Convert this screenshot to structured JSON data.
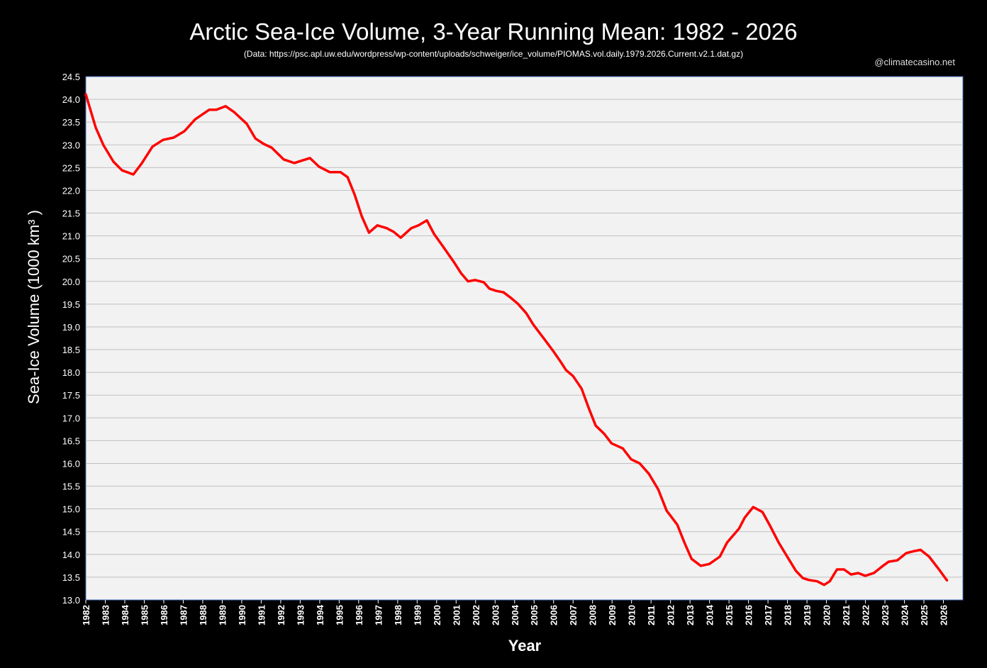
{
  "chart_data": {
    "type": "line",
    "title": "Arctic Sea-Ice Volume, 3-Year Running Mean: 1982 - 2026",
    "subtitle": "(Data: https://psc.apl.uw.edu/wordpress/wp-content/uploads/schweiger/ice_volume/PIOMAS.vol.daily.1979.2026.Current.v2.1.dat.gz)",
    "credit": "@climatecasino.net",
    "xlabel": "Year",
    "ylabel": "Sea-Ice Volume (1000 km³ )",
    "xlim": [
      1982,
      2027
    ],
    "ylim": [
      13.0,
      24.5
    ],
    "grid": true,
    "line_color": "#ff0000",
    "x_ticks": [
      "1982",
      "1983",
      "1984",
      "1985",
      "1986",
      "1987",
      "1988",
      "1989",
      "1990",
      "1991",
      "1992",
      "1993",
      "1994",
      "1995",
      "1996",
      "1997",
      "1998",
      "1999",
      "2000",
      "2001",
      "2002",
      "2003",
      "2004",
      "2005",
      "2006",
      "2007",
      "2008",
      "2009",
      "2010",
      "2011",
      "2012",
      "2013",
      "2014",
      "2015",
      "2016",
      "2017",
      "2018",
      "2019",
      "2020",
      "2021",
      "2022",
      "2023",
      "2024",
      "2025",
      "2026"
    ],
    "y_ticks": [
      "13.0",
      "13.5",
      "14.0",
      "14.5",
      "15.0",
      "15.5",
      "16.0",
      "16.5",
      "17.0",
      "17.5",
      "18.0",
      "18.5",
      "19.0",
      "19.5",
      "20.0",
      "20.5",
      "21.0",
      "21.5",
      "22.0",
      "22.5",
      "23.0",
      "23.5",
      "24.0",
      "24.5"
    ],
    "series": [
      {
        "name": "3-Year Running Mean",
        "x": [
          1982.0,
          1982.51,
          1982.91,
          1983.42,
          1983.86,
          1984.44,
          1984.88,
          1985.42,
          1985.97,
          1986.51,
          1987.06,
          1987.61,
          1988.33,
          1988.7,
          1989.17,
          1989.61,
          1990.26,
          1990.7,
          1991.13,
          1991.53,
          1992.15,
          1992.7,
          1993.06,
          1993.5,
          1993.97,
          1994.52,
          1995.07,
          1995.43,
          1995.8,
          1996.16,
          1996.53,
          1996.96,
          1997.43,
          1997.79,
          1998.16,
          1998.7,
          1999.07,
          1999.5,
          1999.87,
          2000.34,
          2000.89,
          2001.25,
          2001.61,
          2001.98,
          2002.42,
          2002.71,
          2003.07,
          2003.43,
          2003.8,
          2004.16,
          2004.6,
          2004.96,
          2005.44,
          2005.98,
          2006.35,
          2006.64,
          2007.0,
          2007.44,
          2007.8,
          2008.16,
          2008.6,
          2008.97,
          2009.55,
          2009.98,
          2010.42,
          2010.89,
          2011.37,
          2011.8,
          2012.35,
          2012.71,
          2013.08,
          2013.55,
          2013.99,
          2014.53,
          2014.9,
          2015.52,
          2015.81,
          2016.24,
          2016.72,
          2017.08,
          2017.55,
          2018.06,
          2018.43,
          2018.79,
          2019.08,
          2019.52,
          2019.88,
          2020.17,
          2020.54,
          2020.9,
          2021.26,
          2021.63,
          2021.99,
          2022.43,
          2022.9,
          2023.19,
          2023.63,
          2024.1,
          2024.47,
          2024.83,
          2025.27,
          2025.7,
          2026.18
        ],
        "y": [
          24.11,
          23.38,
          22.99,
          22.63,
          22.44,
          22.35,
          22.6,
          22.96,
          23.11,
          23.16,
          23.3,
          23.56,
          23.77,
          23.77,
          23.85,
          23.72,
          23.46,
          23.14,
          23.02,
          22.94,
          22.68,
          22.6,
          22.65,
          22.71,
          22.52,
          22.4,
          22.4,
          22.29,
          21.9,
          21.43,
          21.07,
          21.23,
          21.17,
          21.09,
          20.96,
          21.17,
          21.23,
          21.34,
          21.04,
          20.76,
          20.42,
          20.18,
          20.0,
          20.03,
          19.98,
          19.84,
          19.79,
          19.76,
          19.64,
          19.51,
          19.3,
          19.05,
          18.78,
          18.47,
          18.24,
          18.05,
          17.92,
          17.64,
          17.22,
          16.83,
          16.65,
          16.44,
          16.33,
          16.09,
          16.0,
          15.77,
          15.43,
          14.96,
          14.65,
          14.26,
          13.9,
          13.75,
          13.79,
          13.95,
          14.26,
          14.57,
          14.81,
          15.04,
          14.93,
          14.65,
          14.26,
          13.9,
          13.64,
          13.48,
          13.44,
          13.41,
          13.33,
          13.41,
          13.67,
          13.67,
          13.56,
          13.59,
          13.53,
          13.59,
          13.75,
          13.84,
          13.87,
          14.03,
          14.07,
          14.1,
          13.95,
          13.71,
          13.43
        ]
      }
    ]
  }
}
